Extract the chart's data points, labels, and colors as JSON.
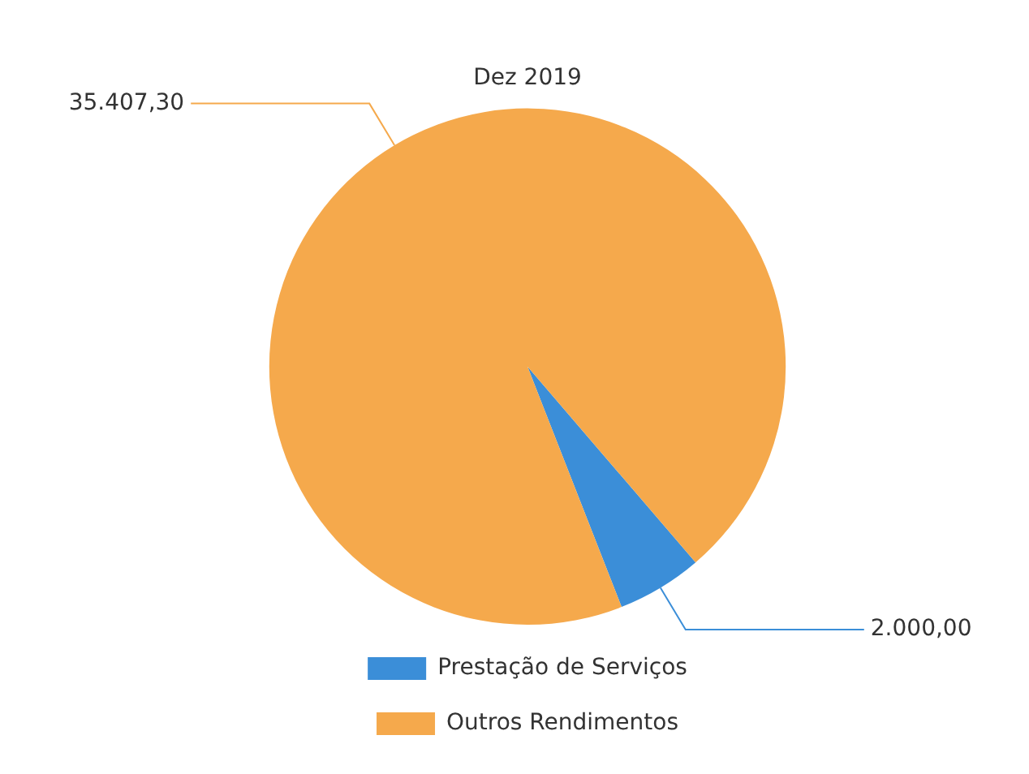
{
  "chart_data": {
    "type": "pie",
    "title": "Dez 2019",
    "categories": [
      "Prestação de Serviços",
      "Outros Rendimentos"
    ],
    "values": [
      2000.0,
      35407.3
    ],
    "colors": [
      "#3b8ed8",
      "#f5a94c"
    ],
    "value_labels": [
      "2.000,00",
      "35.407,30"
    ],
    "legend": "bottom"
  }
}
